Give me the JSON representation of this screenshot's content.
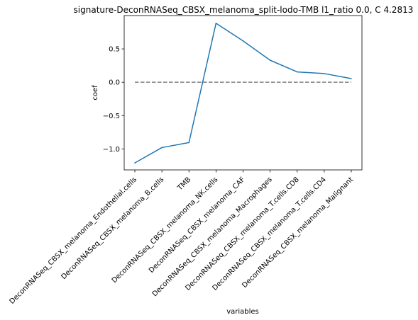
{
  "chart_data": {
    "type": "line",
    "title": "signature-DeconRNASeq_CBSX_melanoma_split-lodo-TMB l1_ratio 0.0, C 4.2813",
    "xlabel": "variables",
    "ylabel": "coef",
    "categories": [
      "DeconRNASeq_CBSX_melanoma_Endothelial.cells",
      "DeconRNASeq_CBSX_melanoma_B.cells",
      "TMB",
      "DeconRNASeq_CBSX_melanoma_NK.cells",
      "DeconRNASeq_CBSX_melanoma_CAF",
      "DeconRNASeq_CBSX_melanoma_Macrophages",
      "DeconRNASeq_CBSX_melanoma_T.cells.CD8",
      "DeconRNASeq_CBSX_melanoma_T.cells.CD4",
      "DeconRNASeq_CBSX_melanoma_Malignant"
    ],
    "series": [
      {
        "values": [
          -1.21,
          -0.98,
          -0.905,
          0.885,
          0.62,
          0.33,
          0.155,
          0.13,
          0.055
        ],
        "color": "#1f77b4"
      }
    ],
    "reference_line": {
      "y": 0.0,
      "style": "dashed",
      "color": "#808080"
    },
    "yticks": [
      {
        "value": 0.5,
        "label": "0.5"
      },
      {
        "value": 0.0,
        "label": "0.0"
      },
      {
        "value": -0.5,
        "label": "−0.5"
      },
      {
        "value": -1.0,
        "label": "−1.0"
      }
    ],
    "ylim": [
      -1.315,
      1.0
    ],
    "grid": false,
    "legend": "none"
  }
}
